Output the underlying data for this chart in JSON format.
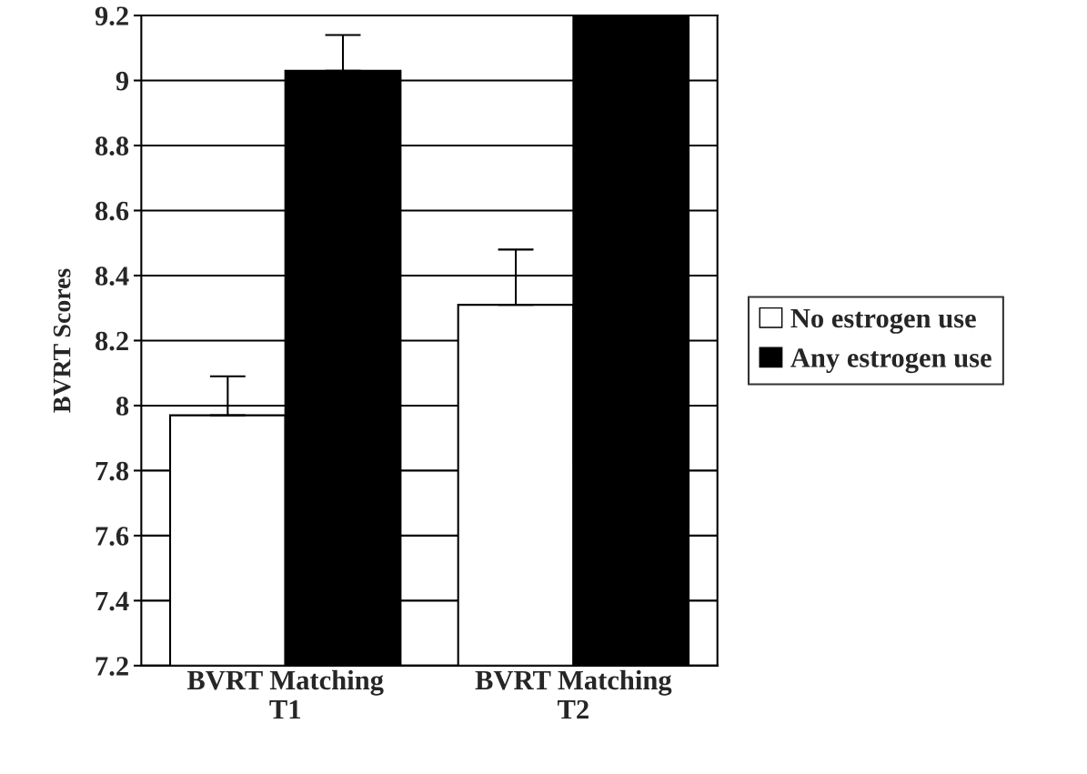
{
  "chart_data": {
    "type": "bar",
    "ylabel": "BVRT Scores",
    "categories": [
      "BVRT Matching\nT1",
      "BVRT Matching\nT2"
    ],
    "series": [
      {
        "name": "No estrogen use",
        "color": "#ffffff",
        "values": [
          7.97,
          8.31
        ],
        "errors": [
          0.12,
          0.17
        ]
      },
      {
        "name": "Any estrogen use",
        "color": "#000000",
        "values": [
          9.03,
          9.2
        ],
        "errors": [
          0.11,
          null
        ]
      }
    ],
    "ylim": [
      7.2,
      9.2
    ],
    "yticks": [
      7.2,
      7.4,
      7.6,
      7.8,
      8,
      8.2,
      8.4,
      8.6,
      8.8,
      9,
      9.2
    ],
    "grid": "y",
    "legend": "right"
  }
}
